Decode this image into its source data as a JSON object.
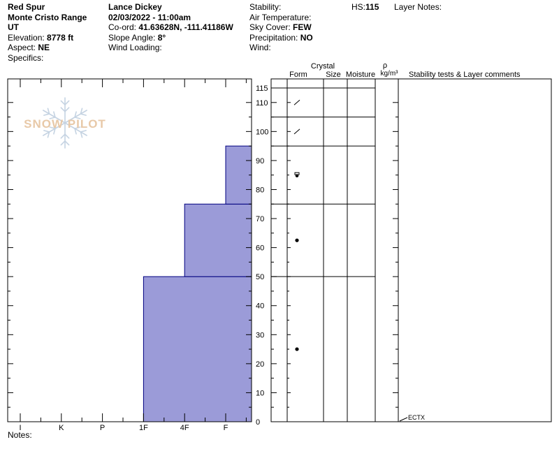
{
  "header": {
    "col1": {
      "name": "Red Spur",
      "range": "Monte Cristo Range",
      "state": "UT",
      "elevation_label": "Elevation:",
      "elevation": "8778 ft",
      "aspect_label": "Aspect:",
      "aspect": "NE",
      "specifics_label": "Specifics:"
    },
    "col2": {
      "observer": "Lance Dickey",
      "datetime": "02/03/2022 - 11:00am",
      "coord_label": "Co-ord:",
      "coord": "41.63628N, -111.41186W",
      "slope_label": "Slope Angle:",
      "slope": "8°",
      "wind_loading_label": "Wind Loading:"
    },
    "col3": {
      "stability_label": "Stability:",
      "air_temp_label": "Air Temperature:",
      "sky_label": "Sky Cover:",
      "sky": "FEW",
      "precip_label": "Precipitation:",
      "precip": "NO",
      "wind_label": "Wind:"
    },
    "hs_label": "HS:",
    "hs": "115",
    "layer_notes_label": "Layer Notes:"
  },
  "columns": {
    "crystal": "Crystal",
    "form": "Form",
    "size": "Size",
    "moisture": "Moisture",
    "rho": "ρ",
    "density_unit": "kg/m³",
    "comments": "Stability tests & Layer comments"
  },
  "watermark": {
    "text": "SNOW PILOT",
    "color": "#e8c9a8",
    "flake_color": "#c5d3e2"
  },
  "notes_label": "Notes:",
  "chart_data": {
    "type": "bar",
    "orientation": "horizontal-step",
    "hardness_scale": [
      "I",
      "K",
      "P",
      "1F",
      "4F",
      "F"
    ],
    "depth_axis": {
      "ticks": [
        0,
        10,
        20,
        30,
        40,
        50,
        60,
        70,
        80,
        90,
        100,
        110,
        115
      ],
      "range": [
        0,
        115
      ]
    },
    "fill_color": "#9b9bd8",
    "edge_color": "#000080",
    "layers": [
      {
        "bottom": 0,
        "top": 50,
        "hardness_index": 3.0,
        "form": "round-dot",
        "form_at": 25
      },
      {
        "bottom": 50,
        "top": 75,
        "hardness_index": 4.0,
        "form": "round-dot",
        "form_at": 62.5
      },
      {
        "bottom": 75,
        "top": 95,
        "hardness_index": 5.0,
        "form": "facet-round",
        "form_at": 85
      },
      {
        "bottom": 95,
        "top": 105,
        "hardness_index": 6.0,
        "form": "slash",
        "form_at": 100
      },
      {
        "bottom": 105,
        "top": 115,
        "hardness_index": 6.35,
        "form": "slash",
        "form_at": 110
      }
    ],
    "tests": [
      {
        "label": "ECTX",
        "depth": 0
      }
    ]
  }
}
